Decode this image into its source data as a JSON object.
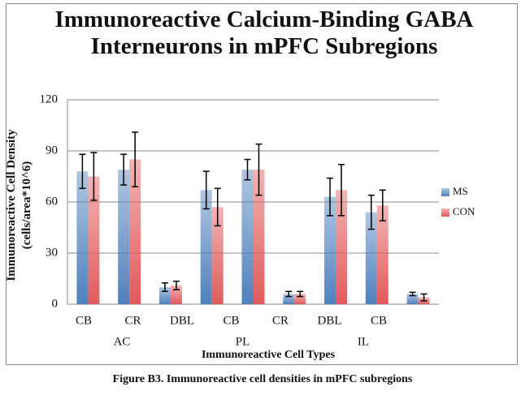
{
  "chart_data": {
    "type": "bar",
    "title": "Immunoreactive Calcium-Binding GABA Interneurons in mPFC Subregions",
    "y_label": "Immunoreactive Cell Density (cells/area*10^6)",
    "x_label": "Immunoreactive Cell Types",
    "categories": [
      "CB",
      "CR",
      "DBL",
      "CB",
      "CR",
      "DBL",
      "CB",
      null,
      null
    ],
    "groups": [
      "AC",
      "PL",
      "IL"
    ],
    "series": [
      {
        "name": "MS",
        "color": "#4f81bd",
        "values": [
          78,
          79,
          10,
          67,
          79,
          6,
          63,
          54,
          6
        ],
        "errors": [
          10,
          9,
          2.5,
          11,
          6,
          1.5,
          11,
          10,
          1
        ]
      },
      {
        "name": "CON",
        "color": "#e05a5a",
        "values": [
          75,
          85,
          11,
          57,
          79,
          6,
          67,
          58,
          4
        ],
        "errors": [
          14,
          16,
          2.5,
          11,
          15,
          1.5,
          15,
          9,
          2
        ]
      }
    ],
    "ylim": [
      0,
      120
    ],
    "yticks": [
      0,
      30,
      60,
      90,
      120
    ],
    "grid": true,
    "legend": "right",
    "caption": "Figure B3.  Immunoreactive cell densities in mPFC subregions"
  }
}
